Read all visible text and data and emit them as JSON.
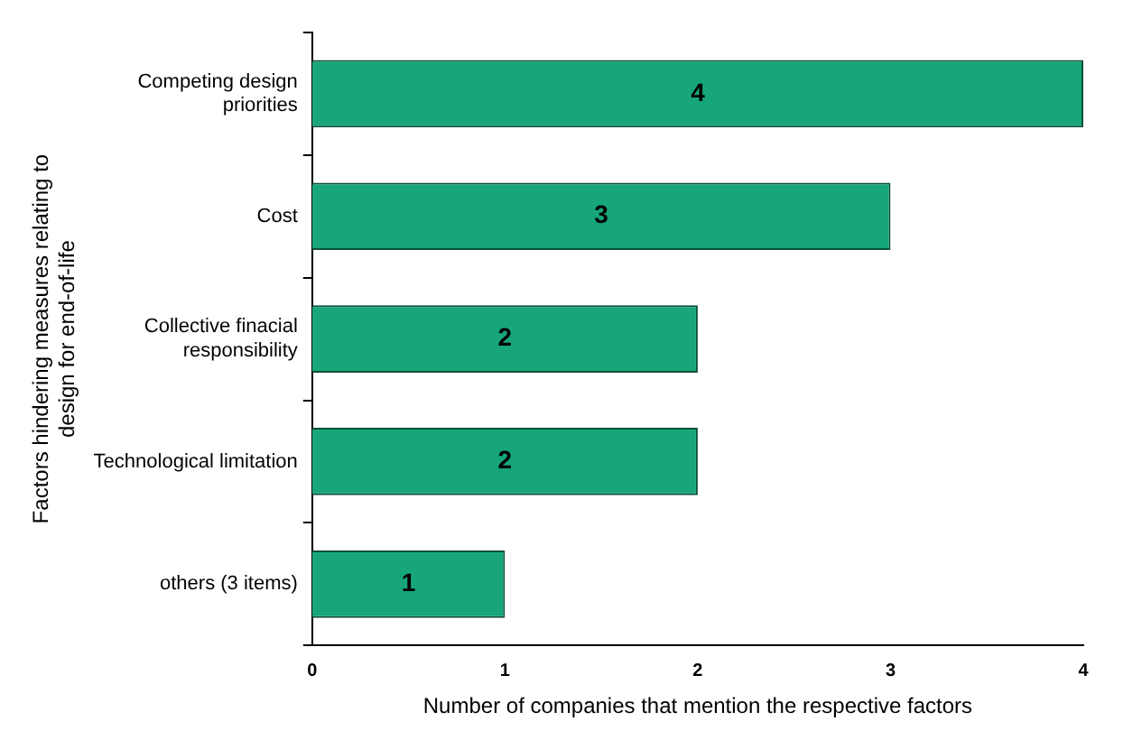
{
  "chart_data": {
    "type": "bar",
    "orientation": "horizontal",
    "categories": [
      "Competing design priorities",
      "Cost",
      "Collective finacial responsibility",
      "Technological limitation",
      "others (3 items)"
    ],
    "values": [
      4,
      3,
      2,
      2,
      1
    ],
    "color": "#16a67a",
    "data_labels": true,
    "xlim": [
      0,
      4
    ],
    "xticks": [
      0,
      1,
      2,
      3,
      4
    ],
    "xlabel": "Number of companies that mention the respective factors",
    "ylabel": "Factors hindering measures relating to design for end-of-life"
  }
}
